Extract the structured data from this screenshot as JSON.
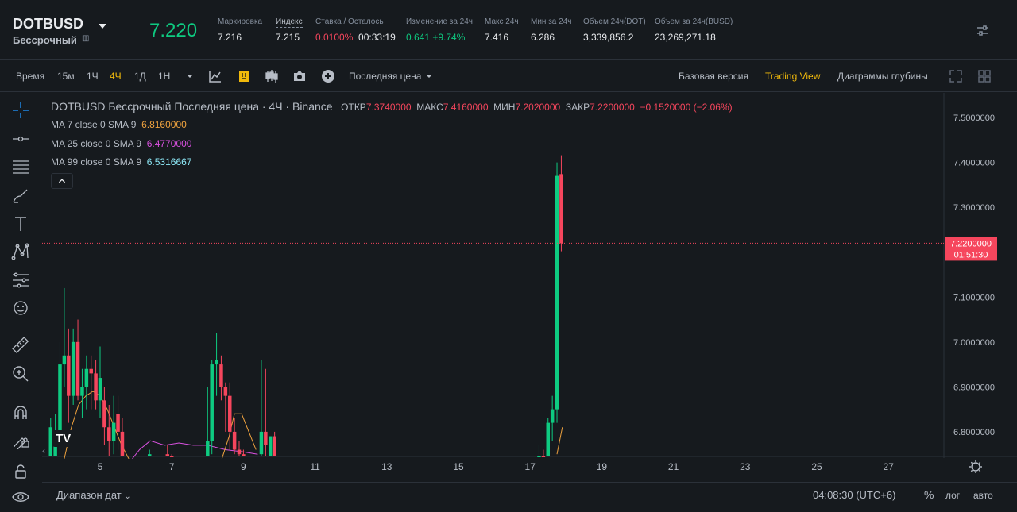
{
  "ticker": {
    "symbol": "DOTBUSD",
    "contract_type": "Бессрочный",
    "last_price": "7.220",
    "stats": {
      "mark_label": "Маркировка",
      "mark_value": "7.216",
      "index_label": "Индекс",
      "index_value": "7.215",
      "funding_label": "Ставка / Осталось",
      "funding_rate": "0.0100%",
      "funding_countdown": "00:33:19",
      "change_label": "Изменение за 24ч",
      "change_value": "0.641 +9.74%",
      "high_label": "Макс 24ч",
      "high_value": "7.416",
      "low_label": "Мин за 24ч",
      "low_value": "6.286",
      "vol_dot_label": "Объем 24ч(DOT)",
      "vol_dot_value": "3,339,856.2",
      "vol_busd_label": "Объем за 24ч(BUSD)",
      "vol_busd_value": "23,269,271.18"
    }
  },
  "toolbar": {
    "time_label": "Время",
    "intervals": [
      "15м",
      "1Ч",
      "4Ч",
      "1Д",
      "1Н"
    ],
    "active_interval": "4Ч",
    "price_type": "Последняя цена",
    "views": [
      "Базовая версия",
      "Trading View",
      "Диаграммы глубины"
    ],
    "active_view": "Trading View"
  },
  "legend": {
    "title": "DOTBUSD Бессрочный Последняя цена · 4Ч · Binance",
    "open_label": "ОТКР",
    "open": "7.3740000",
    "high_label": "МАКС",
    "high": "7.4160000",
    "low_label": "МИН",
    "low": "7.2020000",
    "close_label": "ЗАКР",
    "close": "7.2200000",
    "change": "−0.1520000 (−2.06%)",
    "ma": [
      {
        "label": "MA 7 close 0 SMA 9",
        "value": "6.8160000",
        "color": "#f0a33f"
      },
      {
        "label": "MA 25 close 0 SMA 9",
        "value": "6.4770000",
        "color": "#d951e0"
      },
      {
        "label": "MA 99 close 0 SMA 9",
        "value": "6.5316667",
        "color": "#8de8f7"
      }
    ]
  },
  "chart_data": {
    "type": "candlestick",
    "y_ticks": [
      "7.5000000",
      "7.4000000",
      "7.3000000",
      "7.2000000",
      "7.1000000",
      "7.0000000",
      "6.9000000",
      "6.8000000"
    ],
    "ylim": [
      6.745,
      7.555
    ],
    "x_ticks": [
      "5",
      "7",
      "9",
      "11",
      "13",
      "15",
      "17",
      "19",
      "21",
      "23",
      "25",
      "27"
    ],
    "current_price": "7.2200000",
    "current_price_value": 7.22,
    "countdown": "01:51:30",
    "colors": {
      "up": "#0ecb81",
      "down": "#f6465d",
      "ma7": "#f0a33f",
      "ma25": "#d951e0",
      "ma99": "#8de8f7"
    },
    "candles": [
      {
        "x": 3.62,
        "o": 6.7,
        "h": 6.83,
        "l": 6.68,
        "c": 6.81
      },
      {
        "x": 3.75,
        "o": 6.73,
        "h": 6.84,
        "l": 6.7,
        "c": 6.78
      },
      {
        "x": 3.88,
        "o": 6.78,
        "h": 7.0,
        "l": 6.75,
        "c": 6.95
      },
      {
        "x": 4.0,
        "o": 6.95,
        "h": 7.12,
        "l": 6.9,
        "c": 6.97
      },
      {
        "x": 4.12,
        "o": 6.97,
        "h": 7.03,
        "l": 6.82,
        "c": 6.88
      },
      {
        "x": 4.25,
        "o": 6.88,
        "h": 7.03,
        "l": 6.86,
        "c": 7.0
      },
      {
        "x": 4.38,
        "o": 7.0,
        "h": 7.05,
        "l": 6.87,
        "c": 6.88
      },
      {
        "x": 4.5,
        "o": 6.88,
        "h": 6.94,
        "l": 6.83,
        "c": 6.9
      },
      {
        "x": 4.62,
        "o": 6.9,
        "h": 6.97,
        "l": 6.85,
        "c": 6.94
      },
      {
        "x": 4.75,
        "o": 6.94,
        "h": 6.97,
        "l": 6.85,
        "c": 6.93
      },
      {
        "x": 4.88,
        "o": 6.93,
        "h": 6.96,
        "l": 6.85,
        "c": 6.87
      },
      {
        "x": 5.0,
        "o": 6.87,
        "h": 6.99,
        "l": 6.83,
        "c": 6.92
      },
      {
        "x": 5.12,
        "o": 6.87,
        "h": 6.9,
        "l": 6.77,
        "c": 6.81
      },
      {
        "x": 5.25,
        "o": 6.81,
        "h": 6.86,
        "l": 6.74,
        "c": 6.78
      },
      {
        "x": 5.38,
        "o": 6.78,
        "h": 6.88,
        "l": 6.75,
        "c": 6.82
      },
      {
        "x": 5.5,
        "o": 6.84,
        "h": 6.88,
        "l": 6.76,
        "c": 6.8
      },
      {
        "x": 5.62,
        "o": 6.8,
        "h": 6.83,
        "l": 6.7,
        "c": 6.74
      },
      {
        "x": 6.38,
        "o": 6.7,
        "h": 6.76,
        "l": 6.69,
        "c": 6.75
      },
      {
        "x": 6.88,
        "o": 6.75,
        "h": 6.77,
        "l": 6.7,
        "c": 6.74
      },
      {
        "x": 7.0,
        "o": 6.74,
        "h": 6.75,
        "l": 6.68,
        "c": 6.7
      },
      {
        "x": 8.0,
        "o": 6.7,
        "h": 6.9,
        "l": 6.68,
        "c": 6.78
      },
      {
        "x": 8.12,
        "o": 6.78,
        "h": 6.96,
        "l": 6.75,
        "c": 6.95
      },
      {
        "x": 8.25,
        "o": 6.95,
        "h": 7.02,
        "l": 6.88,
        "c": 6.96
      },
      {
        "x": 8.38,
        "o": 6.95,
        "h": 6.97,
        "l": 6.87,
        "c": 6.9
      },
      {
        "x": 8.5,
        "o": 6.9,
        "h": 6.91,
        "l": 6.8,
        "c": 6.88
      },
      {
        "x": 8.62,
        "o": 6.88,
        "h": 6.91,
        "l": 6.76,
        "c": 6.8
      },
      {
        "x": 8.75,
        "o": 6.8,
        "h": 6.83,
        "l": 6.75,
        "c": 6.76
      },
      {
        "x": 8.88,
        "o": 6.76,
        "h": 6.78,
        "l": 6.72,
        "c": 6.75
      },
      {
        "x": 9.0,
        "o": 6.75,
        "h": 6.76,
        "l": 6.7,
        "c": 6.73
      },
      {
        "x": 9.5,
        "o": 6.75,
        "h": 6.96,
        "l": 6.7,
        "c": 6.8
      },
      {
        "x": 9.62,
        "o": 6.8,
        "h": 6.94,
        "l": 6.73,
        "c": 6.77
      },
      {
        "x": 9.75,
        "o": 6.74,
        "h": 6.79,
        "l": 6.72,
        "c": 6.79
      },
      {
        "x": 9.87,
        "o": 6.79,
        "h": 6.8,
        "l": 6.7,
        "c": 6.72
      },
      {
        "x": 17.25,
        "o": 6.7,
        "h": 6.77,
        "l": 6.68,
        "c": 6.74
      },
      {
        "x": 17.37,
        "o": 6.74,
        "h": 6.76,
        "l": 6.7,
        "c": 6.72
      },
      {
        "x": 17.5,
        "o": 6.72,
        "h": 6.83,
        "l": 6.7,
        "c": 6.82
      },
      {
        "x": 17.62,
        "o": 6.82,
        "h": 6.88,
        "l": 6.78,
        "c": 6.85
      },
      {
        "x": 17.75,
        "o": 6.85,
        "h": 7.4,
        "l": 6.82,
        "c": 7.37
      },
      {
        "x": 17.87,
        "o": 7.374,
        "h": 7.416,
        "l": 7.202,
        "c": 7.22
      }
    ],
    "ma7": [
      [
        4.0,
        6.74
      ],
      [
        4.2,
        6.81
      ],
      [
        4.4,
        6.86
      ],
      [
        4.6,
        6.88
      ],
      [
        4.8,
        6.89
      ],
      [
        5.0,
        6.88
      ],
      [
        5.2,
        6.85
      ],
      [
        5.4,
        6.81
      ],
      [
        5.6,
        6.77
      ],
      [
        5.8,
        6.74
      ]
    ],
    "ma25": [
      [
        5.9,
        6.74
      ],
      [
        6.1,
        6.76
      ],
      [
        6.4,
        6.78
      ],
      [
        6.8,
        6.77
      ],
      [
        7.2,
        6.775
      ],
      [
        7.6,
        6.77
      ],
      [
        8.0,
        6.77
      ],
      [
        8.5,
        6.76
      ],
      [
        9.0,
        6.755
      ],
      [
        9.4,
        6.75
      ]
    ],
    "ma7b": [
      [
        8.4,
        6.74
      ],
      [
        8.6,
        6.79
      ],
      [
        8.75,
        6.84
      ],
      [
        8.95,
        6.84
      ],
      [
        9.15,
        6.8
      ],
      [
        9.35,
        6.76
      ]
    ],
    "ma7c": [
      [
        17.75,
        6.75
      ],
      [
        17.9,
        6.81
      ]
    ]
  },
  "bottom": {
    "date_range": "Диапазон дат",
    "clock": "04:08:30 (UTC+6)",
    "percent": "%",
    "log": "лог",
    "auto": "авто"
  }
}
